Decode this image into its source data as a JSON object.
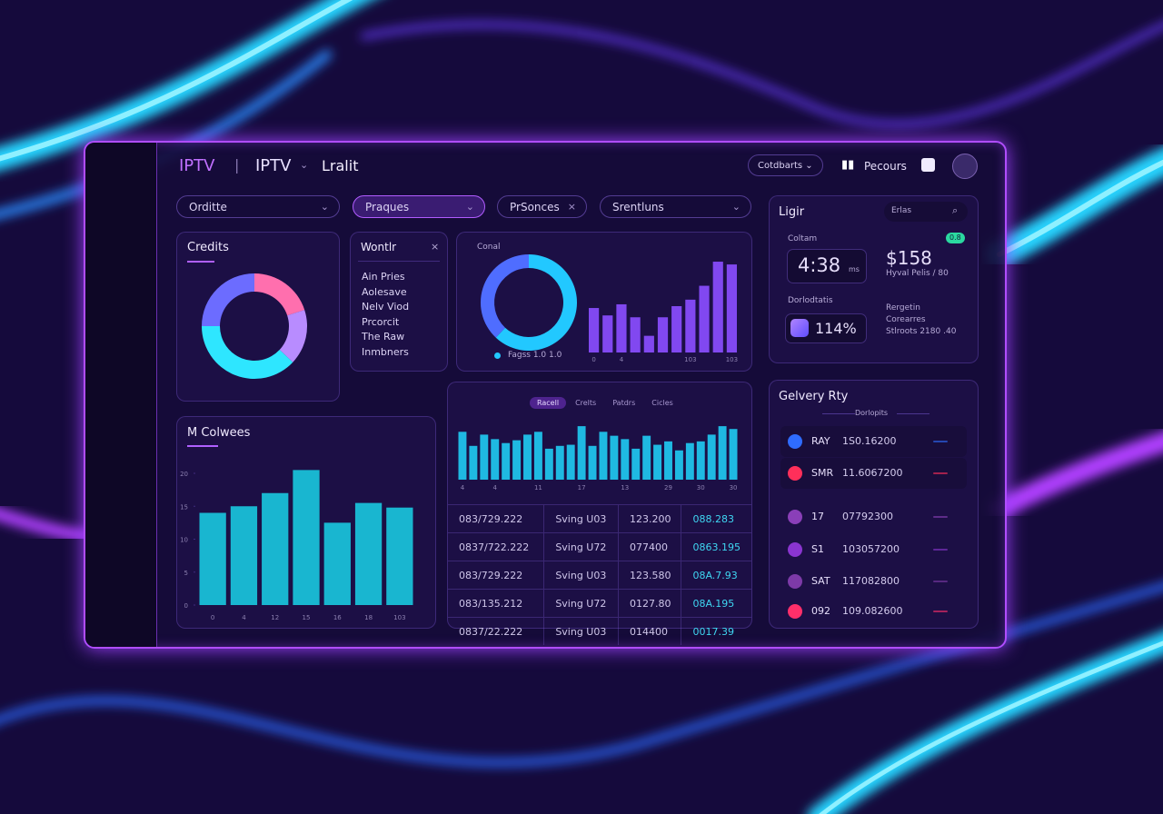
{
  "header": {
    "brand": "IPTV",
    "section": "IPTV",
    "page": "Lralit",
    "menu": "Cotdbarts",
    "user": "Pecours"
  },
  "filters": [
    "Orditte",
    "Praques",
    "PrSonces",
    "Srentluns"
  ],
  "credits": {
    "title": "Credits",
    "chart_data": {
      "type": "pie",
      "values": [
        20,
        17,
        38,
        25
      ],
      "colors": [
        "#ff6fae",
        "#b88cff",
        "#2ee6ff",
        "#6c6cff"
      ]
    }
  },
  "wontlr": {
    "title": "Wontlr",
    "items": [
      "Ain Pries",
      "Aolesave",
      "Nelv Viod",
      "Prcorcit",
      "The Raw",
      "Inmbners"
    ]
  },
  "overview": {
    "label": "Conal",
    "legend": "Fagss 1.0 1.0",
    "donut": {
      "type": "pie",
      "values": [
        62,
        38
      ],
      "colors": [
        "#22c8ff",
        "#4f6dff"
      ]
    },
    "bars": {
      "type": "bar",
      "categories": [
        "0",
        null,
        "4",
        null,
        null,
        null,
        null,
        "103",
        null,
        null,
        "103"
      ],
      "values": [
        48,
        40,
        52,
        38,
        18,
        38,
        50,
        57,
        72,
        98,
        95
      ],
      "color": "#8a4dff",
      "ylim": [
        0,
        100
      ]
    }
  },
  "stats": {
    "title": "Ligir",
    "search": "Erlas",
    "time_label": "Coltam",
    "time": "4:38",
    "time_unit": "ms",
    "amount": "$158",
    "badge": "0.8",
    "amount_note": "Hyval Pelis / 80",
    "rate_label": "Dorlodtatis",
    "rate": "114%",
    "notes": [
      "Rergetin",
      "Corearres",
      "Stlroots 2180 .40"
    ]
  },
  "columns": {
    "title": "M Colwees",
    "chart_data": {
      "type": "bar",
      "categories": [
        "0",
        "4",
        "12",
        "15",
        "16",
        "18",
        "103"
      ],
      "values": [
        14,
        15,
        17,
        20.5,
        12.5,
        15.5,
        14.8
      ],
      "color": "#19c4dc",
      "ylim": [
        0,
        20
      ],
      "yticks": [
        0,
        5,
        10,
        15,
        20
      ]
    }
  },
  "activity": {
    "tabs": [
      "Racell",
      "Crelts",
      "Patdrs",
      "Cicles"
    ],
    "chart_data": {
      "type": "bar",
      "categories": [
        "4",
        null,
        null,
        "4",
        null,
        null,
        null,
        "11",
        null,
        null,
        null,
        "17",
        null,
        null,
        null,
        "13",
        null,
        null,
        null,
        "29",
        null,
        null,
        "30",
        null,
        null,
        "30"
      ],
      "values": [
        85,
        60,
        80,
        72,
        65,
        70,
        80,
        85,
        55,
        60,
        62,
        95,
        60,
        85,
        78,
        72,
        55,
        78,
        62,
        68,
        52,
        65,
        68,
        80,
        95,
        90
      ],
      "color": "#1fc8f0",
      "ylim": [
        0,
        100
      ]
    },
    "table": [
      [
        "083/729.222",
        "Sving U03",
        "123.200",
        "088.283"
      ],
      [
        "0837/722.222",
        "Sving U72",
        "077400",
        "0863.195"
      ],
      [
        "083/729.222",
        "Sving U03",
        "123.580",
        "08A.7.93"
      ],
      [
        "083/135.212",
        "Sving U72",
        "0127.80",
        "08A.195"
      ],
      [
        "0837/22.222",
        "Sving U03",
        "014400",
        "0017.39"
      ]
    ]
  },
  "delivery": {
    "title": "Gelvery Rty",
    "subtitle": "Dorlopits",
    "items": [
      {
        "code": "RAY",
        "value": "1S0.16200",
        "color": "#2f6cff"
      },
      {
        "code": "SMR",
        "value": "11.6067200",
        "color": "#ff2f5a"
      },
      {
        "code": "17",
        "value": "07792300",
        "color": "#8a3fb8"
      },
      {
        "code": "S1",
        "value": "103057200",
        "color": "#8a35d0"
      },
      {
        "code": "SAT",
        "value": "117082800",
        "color": "#7d3aa8"
      },
      {
        "code": "092",
        "value": "109.082600",
        "color": "#ff2f6a"
      }
    ]
  }
}
